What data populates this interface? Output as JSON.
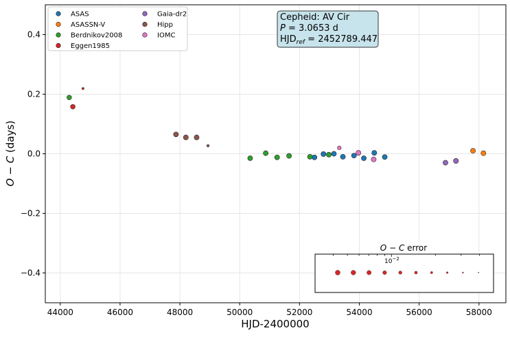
{
  "chart_data": {
    "type": "scatter",
    "xlabel": "HJD-2400000",
    "ylabel": "O − C (days)",
    "xlim": [
      43500,
      58900
    ],
    "ylim": [
      -0.5,
      0.5
    ],
    "xticks": [
      44000,
      46000,
      48000,
      50000,
      52000,
      54000,
      56000,
      58000
    ],
    "yticks": [
      0.4,
      0.2,
      0.0,
      -0.2,
      -0.4
    ],
    "ytick_labels": [
      "0.4",
      "0.2",
      "0.0",
      "−0.2",
      "−0.4"
    ],
    "grid": true,
    "legend_position": "top-left",
    "info_box": {
      "line1": "Cepheid: AV Cir",
      "line2_prefix": "P",
      "line2_rest": " = 3.0653 d",
      "line3_prefix": "HJD",
      "line3_sub": "ref",
      "line3_rest": " = 2452789.447"
    },
    "error_legend": {
      "title": "O − C error",
      "scale_base": "10",
      "scale_exp": "−2",
      "color": "#d62728",
      "sizes": [
        5.2,
        5.0,
        4.6,
        4.0,
        3.4,
        2.8,
        2.2,
        1.6,
        1.0,
        0.6
      ]
    },
    "series": [
      {
        "name": "ASAS",
        "color": "#1f77b4",
        "points": [
          {
            "x": 52500,
            "y": -0.012,
            "r": 3.6
          },
          {
            "x": 52800,
            "y": -0.001,
            "r": 3.6
          },
          {
            "x": 53150,
            "y": 0.0,
            "r": 3.6
          },
          {
            "x": 53450,
            "y": -0.01,
            "r": 3.6
          },
          {
            "x": 53820,
            "y": -0.006,
            "r": 3.6
          },
          {
            "x": 54150,
            "y": -0.015,
            "r": 3.6
          },
          {
            "x": 54500,
            "y": 0.003,
            "r": 3.6
          },
          {
            "x": 54850,
            "y": -0.011,
            "r": 3.6
          }
        ]
      },
      {
        "name": "ASASSN-V",
        "color": "#ff7f0e",
        "points": [
          {
            "x": 57800,
            "y": 0.01,
            "r": 3.6
          },
          {
            "x": 58150,
            "y": 0.002,
            "r": 3.6
          }
        ]
      },
      {
        "name": "Berdnikov2008",
        "color": "#2ca02c",
        "points": [
          {
            "x": 44300,
            "y": 0.189,
            "r": 3.4
          },
          {
            "x": 50350,
            "y": -0.015,
            "r": 3.6
          },
          {
            "x": 50870,
            "y": 0.002,
            "r": 3.6
          },
          {
            "x": 51250,
            "y": -0.012,
            "r": 3.6
          },
          {
            "x": 51650,
            "y": -0.007,
            "r": 3.6
          },
          {
            "x": 52350,
            "y": -0.01,
            "r": 3.6
          },
          {
            "x": 52980,
            "y": -0.003,
            "r": 3.6
          }
        ]
      },
      {
        "name": "Eggen1985",
        "color": "#d62728",
        "points": [
          {
            "x": 44420,
            "y": 0.158,
            "r": 3.4
          },
          {
            "x": 44760,
            "y": 0.219,
            "r": 1.6
          }
        ]
      },
      {
        "name": "Gaia-dr2",
        "color": "#9467bd",
        "points": [
          {
            "x": 56880,
            "y": -0.03,
            "r": 3.6
          },
          {
            "x": 57230,
            "y": -0.024,
            "r": 3.6
          }
        ]
      },
      {
        "name": "Hipp",
        "color": "#8c564b",
        "points": [
          {
            "x": 47870,
            "y": 0.065,
            "r": 3.6
          },
          {
            "x": 48200,
            "y": 0.055,
            "r": 3.6
          },
          {
            "x": 48560,
            "y": 0.055,
            "r": 3.6
          },
          {
            "x": 48940,
            "y": 0.027,
            "r": 1.8
          }
        ]
      },
      {
        "name": "IOMC",
        "color": "#e377c2",
        "points": [
          {
            "x": 53330,
            "y": 0.02,
            "r": 2.8
          },
          {
            "x": 53970,
            "y": 0.003,
            "r": 3.6
          },
          {
            "x": 54480,
            "y": -0.019,
            "r": 3.6
          }
        ]
      }
    ]
  }
}
